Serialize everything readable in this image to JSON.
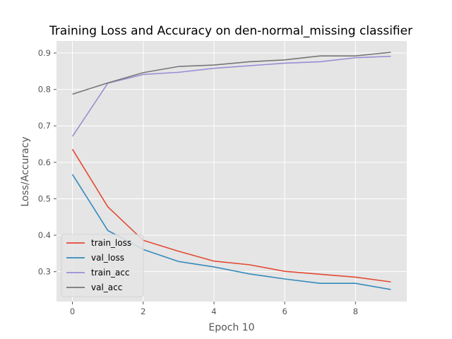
{
  "chart_data": {
    "type": "line",
    "title": "Training Loss and Accuracy on den-normal_missing classifier",
    "xlabel": "Epoch 10",
    "ylabel": "Loss/Accuracy",
    "x": [
      0,
      1,
      2,
      3,
      4,
      5,
      6,
      7,
      8,
      9
    ],
    "xlim": [
      -0.45,
      9.45
    ],
    "ylim": [
      0.218,
      0.933
    ],
    "xticks": [
      0,
      2,
      4,
      6,
      8
    ],
    "xtick_labels": [
      "0",
      "2",
      "4",
      "6",
      "8"
    ],
    "yticks": [
      0.3,
      0.4,
      0.5,
      0.6,
      0.7,
      0.8,
      0.9
    ],
    "ytick_labels": [
      "0.3",
      "0.4",
      "0.5",
      "0.6",
      "0.7",
      "0.8",
      "0.9"
    ],
    "grid": true,
    "legend_position": "lower-left",
    "series": [
      {
        "name": "train_loss",
        "color": "#E24A33",
        "values": [
          0.636,
          0.478,
          0.386,
          0.356,
          0.329,
          0.319,
          0.301,
          0.293,
          0.285,
          0.272
        ]
      },
      {
        "name": "val_loss",
        "color": "#348ABD",
        "values": [
          0.567,
          0.413,
          0.361,
          0.328,
          0.313,
          0.294,
          0.28,
          0.268,
          0.268,
          0.251
        ]
      },
      {
        "name": "train_acc",
        "color": "#988ED5",
        "values": [
          0.671,
          0.817,
          0.841,
          0.847,
          0.858,
          0.865,
          0.872,
          0.876,
          0.887,
          0.891
        ]
      },
      {
        "name": "val_acc",
        "color": "#777777",
        "values": [
          0.787,
          0.818,
          0.846,
          0.863,
          0.867,
          0.876,
          0.881,
          0.892,
          0.892,
          0.902
        ]
      }
    ]
  },
  "style": {
    "plot_background": "#E5E5E5",
    "grid_color": "#FFFFFF",
    "tick_color": "#555555"
  }
}
